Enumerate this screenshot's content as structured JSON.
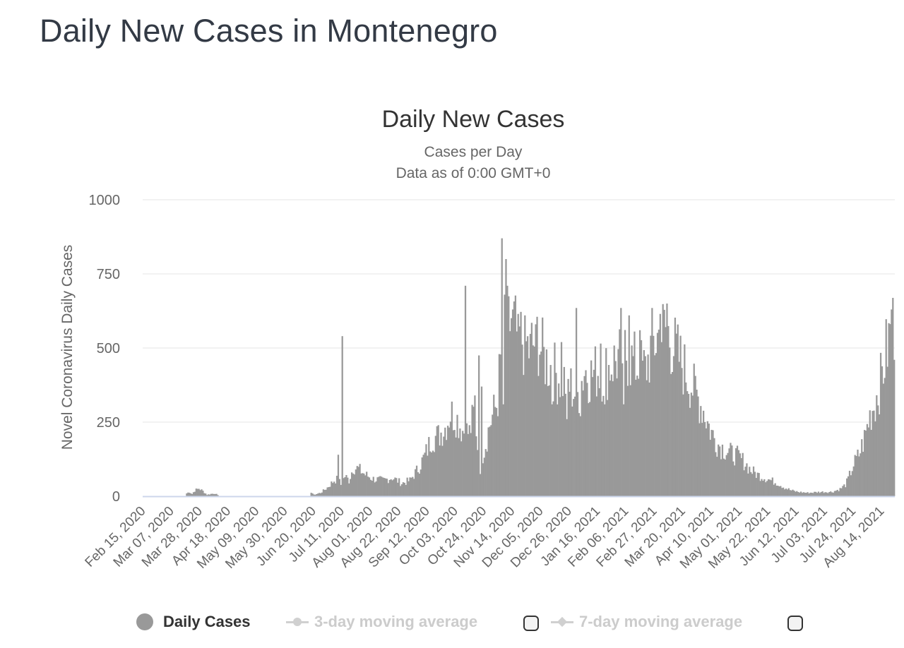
{
  "page": {
    "title": "Daily New Cases in Montenegro"
  },
  "chart_data": {
    "type": "bar",
    "title": "Daily New Cases",
    "subtitle_lines": [
      "Cases per Day",
      "Data as of 0:00 GMT+0"
    ],
    "ylabel": "Novel Coronavirus Daily Cases",
    "xlabel": "",
    "ylim": [
      0,
      1000
    ],
    "yticks": [
      0,
      250,
      500,
      750,
      1000
    ],
    "grid": true,
    "x_start": "Feb 15, 2020",
    "x_end": "Aug 23, 2021",
    "bar_color": "#999999",
    "xtick_labels": [
      "Feb 15, 2020",
      "Mar 07, 2020",
      "Mar 28, 2020",
      "Apr 18, 2020",
      "May 09, 2020",
      "May 30, 2020",
      "Jun 20, 2020",
      "Jul 11, 2020",
      "Aug 01, 2020",
      "Aug 22, 2020",
      "Sep 12, 2020",
      "Oct 03, 2020",
      "Oct 24, 2020",
      "Nov 14, 2020",
      "Dec 05, 2020",
      "Dec 26, 2020",
      "Jan 16, 2021",
      "Feb 06, 2021",
      "Feb 27, 2021",
      "Mar 20, 2021",
      "Apr 10, 2021",
      "May 01, 2021",
      "May 22, 2021",
      "Jun 12, 2021",
      "Jul 03, 2021",
      "Jul 24, 2021",
      "Aug 14, 2021"
    ],
    "series": [
      {
        "name": "Daily Cases",
        "color": "#999999",
        "anchor_points": [
          [
            "Feb 15, 2020",
            0
          ],
          [
            "Mar 17, 2020",
            0
          ],
          [
            "Mar 18, 2020",
            10
          ],
          [
            "Mar 20, 2020",
            15
          ],
          [
            "Mar 22, 2020",
            8
          ],
          [
            "Mar 24, 2020",
            20
          ],
          [
            "Mar 27, 2020",
            27
          ],
          [
            "Mar 30, 2020",
            18
          ],
          [
            "Apr 02, 2020",
            5
          ],
          [
            "Apr 05, 2020",
            8
          ],
          [
            "Apr 08, 2020",
            10
          ],
          [
            "Apr 11, 2020",
            0
          ],
          [
            "Jun 17, 2020",
            0
          ],
          [
            "Jun 18, 2020",
            15
          ],
          [
            "Jun 20, 2020",
            5
          ],
          [
            "Jun 25, 2020",
            12
          ],
          [
            "Jun 30, 2020",
            30
          ],
          [
            "Jul 05, 2020",
            55
          ],
          [
            "Jul 08, 2020",
            60
          ],
          [
            "Jul 10, 2020",
            40
          ],
          [
            "Jul 13, 2020",
            70
          ],
          [
            "Jul 16, 2020",
            55
          ],
          [
            "Jul 19, 2020",
            100
          ],
          [
            "Jul 23, 2020",
            95
          ],
          [
            "Jul 28, 2020",
            75
          ],
          [
            "Aug 03, 2020",
            60
          ],
          [
            "Aug 10, 2020",
            55
          ],
          [
            "Aug 17, 2020",
            65
          ],
          [
            "Aug 24, 2020",
            45
          ],
          [
            "Aug 30, 2020",
            55
          ],
          [
            "Sep 05, 2020",
            95
          ],
          [
            "Sep 10, 2020",
            140
          ],
          [
            "Sep 15, 2020",
            200
          ],
          [
            "Sep 20, 2020",
            210
          ],
          [
            "Sep 25, 2020",
            240
          ],
          [
            "Sep 29, 2020",
            290
          ],
          [
            "Oct 03, 2020",
            275
          ],
          [
            "Oct 08, 2020",
            230
          ],
          [
            "Oct 13, 2020",
            220
          ],
          [
            "Oct 17, 2020",
            300
          ],
          [
            "Oct 20, 2020",
            110
          ],
          [
            "Oct 24, 2020",
            160
          ],
          [
            "Oct 28, 2020",
            250
          ],
          [
            "Nov 02, 2020",
            320
          ],
          [
            "Nov 06, 2020",
            500
          ],
          [
            "Nov 10, 2020",
            560
          ],
          [
            "Nov 13, 2020",
            620
          ],
          [
            "Nov 17, 2020",
            560
          ],
          [
            "Nov 22, 2020",
            540
          ],
          [
            "Nov 27, 2020",
            500
          ],
          [
            "Dec 02, 2020",
            560
          ],
          [
            "Dec 07, 2020",
            480
          ],
          [
            "Dec 12, 2020",
            450
          ],
          [
            "Dec 17, 2020",
            420
          ],
          [
            "Dec 22, 2020",
            400
          ],
          [
            "Dec 27, 2020",
            380
          ],
          [
            "Jan 01, 2021",
            350
          ],
          [
            "Jan 06, 2021",
            440
          ],
          [
            "Jan 11, 2021",
            420
          ],
          [
            "Jan 16, 2021",
            440
          ],
          [
            "Jan 21, 2021",
            430
          ],
          [
            "Jan 26, 2021",
            460
          ],
          [
            "Jan 31, 2021",
            480
          ],
          [
            "Feb 05, 2021",
            500
          ],
          [
            "Feb 10, 2021",
            470
          ],
          [
            "Feb 15, 2021",
            450
          ],
          [
            "Feb 20, 2021",
            440
          ],
          [
            "Feb 25, 2021",
            520
          ],
          [
            "Mar 02, 2021",
            560
          ],
          [
            "Mar 07, 2021",
            580
          ],
          [
            "Mar 10, 2021",
            550
          ],
          [
            "Mar 15, 2021",
            500
          ],
          [
            "Mar 20, 2021",
            450
          ],
          [
            "Mar 25, 2021",
            400
          ],
          [
            "Mar 30, 2021",
            350
          ],
          [
            "Apr 04, 2021",
            300
          ],
          [
            "Apr 09, 2021",
            230
          ],
          [
            "Apr 14, 2021",
            185
          ],
          [
            "Apr 19, 2021",
            165
          ],
          [
            "Apr 24, 2021",
            150
          ],
          [
            "Apr 29, 2021",
            140
          ],
          [
            "May 04, 2021",
            120
          ],
          [
            "May 09, 2021",
            90
          ],
          [
            "May 14, 2021",
            75
          ],
          [
            "May 19, 2021",
            65
          ],
          [
            "May 24, 2021",
            55
          ],
          [
            "May 29, 2021",
            45
          ],
          [
            "Jun 03, 2021",
            30
          ],
          [
            "Jun 08, 2021",
            20
          ],
          [
            "Jun 13, 2021",
            15
          ],
          [
            "Jun 20, 2021",
            12
          ],
          [
            "Jun 30, 2021",
            15
          ],
          [
            "Jul 08, 2021",
            15
          ],
          [
            "Jul 14, 2021",
            25
          ],
          [
            "Jul 18, 2021",
            40
          ],
          [
            "Jul 20, 2021",
            60
          ],
          [
            "Jul 24, 2021",
            110
          ],
          [
            "Jul 28, 2021",
            145
          ],
          [
            "Aug 01, 2021",
            200
          ],
          [
            "Aug 05, 2021",
            280
          ],
          [
            "Aug 09, 2021",
            330
          ],
          [
            "Aug 13, 2021",
            400
          ],
          [
            "Aug 17, 2021",
            500
          ],
          [
            "Aug 20, 2021",
            560
          ],
          [
            "Aug 23, 2021",
            600
          ]
        ],
        "spikes": [
          [
            "Jul 08, 2020",
            140
          ],
          [
            "Jul 11, 2020",
            540
          ],
          [
            "Oct 10, 2020",
            710
          ],
          [
            "Oct 17, 2020",
            340
          ],
          [
            "Oct 20, 2020",
            475
          ],
          [
            "Oct 22, 2020",
            370
          ],
          [
            "Nov 06, 2020",
            870
          ],
          [
            "Nov 08, 2020",
            680
          ],
          [
            "Nov 09, 2020",
            800
          ],
          [
            "Nov 10, 2020",
            710
          ],
          [
            "Nov 14, 2020",
            630
          ],
          [
            "Nov 18, 2020",
            615
          ],
          [
            "Nov 23, 2020",
            610
          ],
          [
            "Nov 28, 2020",
            585
          ],
          [
            "Dec 01, 2020",
            580
          ],
          [
            "Dec 20, 2020",
            520
          ],
          [
            "Dec 31, 2020",
            635
          ],
          [
            "Jan 18, 2021",
            515
          ],
          [
            "Feb 02, 2021",
            635
          ],
          [
            "Feb 08, 2021",
            610
          ],
          [
            "Feb 16, 2021",
            560
          ],
          [
            "Feb 25, 2021",
            635
          ],
          [
            "Mar 03, 2021",
            615
          ],
          [
            "Mar 08, 2021",
            650
          ],
          [
            "Aug 21, 2021",
            630
          ]
        ],
        "dips": [
          [
            "Oct 21, 2020",
            75
          ],
          [
            "Nov 03, 2020",
            270
          ],
          [
            "Nov 07, 2020",
            310
          ],
          [
            "Dec 13, 2020",
            310
          ],
          [
            "Dec 24, 2020",
            260
          ],
          [
            "Jan 03, 2021",
            270
          ],
          [
            "Jan 21, 2021",
            310
          ],
          [
            "Feb 04, 2021",
            310
          ]
        ]
      }
    ]
  },
  "legend": {
    "items": [
      {
        "label": "Daily Cases",
        "color": "#999999",
        "active": true
      },
      {
        "label": "3-day moving average",
        "color": "#cccccc",
        "active": false
      },
      {
        "label": "7-day moving average",
        "color": "#cccccc",
        "active": false
      }
    ]
  }
}
